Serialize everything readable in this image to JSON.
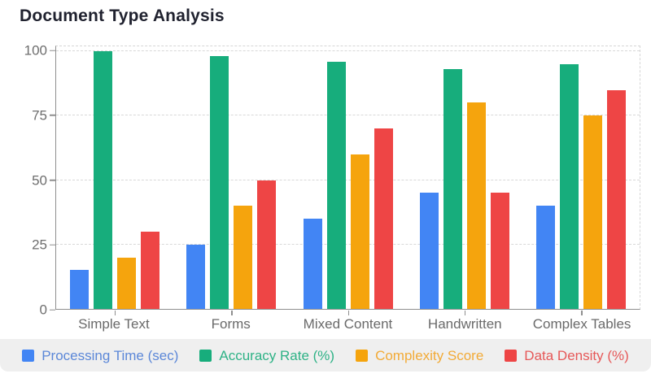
{
  "title": "Document Type Analysis",
  "chart_data": {
    "type": "bar",
    "title": "Document Type Analysis",
    "categories": [
      "Simple Text",
      "Forms",
      "Mixed Content",
      "Handwritten",
      "Complex Tables"
    ],
    "series": [
      {
        "name": "Processing Time (sec)",
        "color": "#4285F4",
        "legend_text_color": "#5b87d8",
        "values": [
          15,
          25,
          35,
          45,
          40
        ]
      },
      {
        "name": "Accuracy Rate (%)",
        "color": "#17AD7C",
        "legend_text_color": "#2eb286",
        "values": [
          100,
          98,
          96,
          93,
          95
        ]
      },
      {
        "name": "Complexity Score",
        "color": "#F5A40D",
        "legend_text_color": "#f2aa36",
        "values": [
          20,
          40,
          60,
          80,
          75
        ]
      },
      {
        "name": "Data Density (%)",
        "color": "#EE4545",
        "legend_text_color": "#e65858",
        "values": [
          30,
          50,
          70,
          45,
          85
        ]
      }
    ],
    "y_ticks": [
      0,
      25,
      50,
      75,
      100
    ],
    "ylim": [
      0,
      100
    ],
    "xlabel": "",
    "ylabel": "",
    "grid": "dashed-horizontal",
    "legend_position": "bottom"
  }
}
